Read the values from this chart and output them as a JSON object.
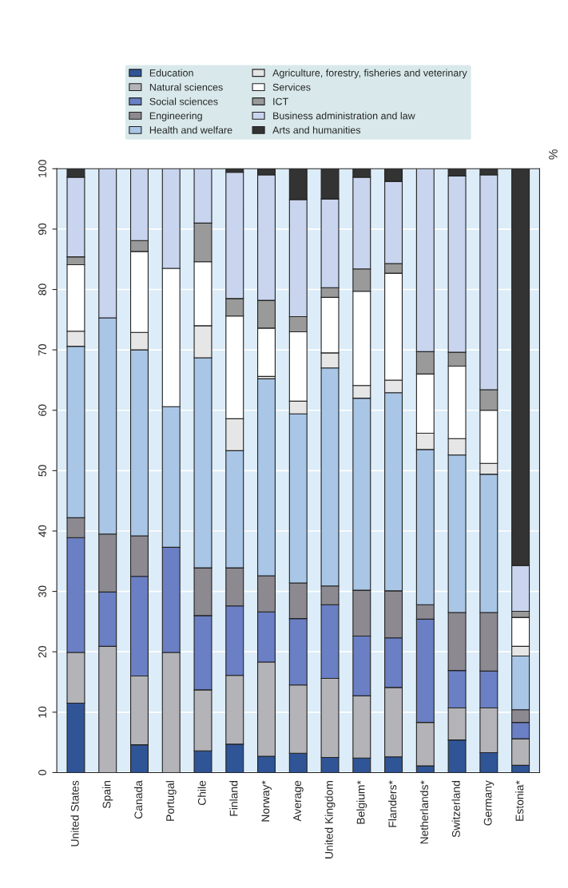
{
  "chart_data": {
    "type": "bar",
    "stacked": true,
    "ylabel": "%",
    "categories": [
      "United States",
      "Spain",
      "Canada",
      "Portugal",
      "Chile",
      "Finland",
      "Norway*",
      "Average",
      "United Kingdom",
      "Belgium*",
      "Flanders*",
      "Netherlands*",
      "Switzerland",
      "Germany",
      "Estonia*"
    ],
    "series": [
      {
        "name": "Education",
        "color": "#2f5597",
        "values": [
          11.5,
          0,
          4.6,
          0,
          3.6,
          4.7,
          2.7,
          3.2,
          2.5,
          2.4,
          2.6,
          1.1,
          5.4,
          3.3,
          1.2
        ]
      },
      {
        "name": "Natural sciences",
        "color": "#b4b4b8",
        "values": [
          8.4,
          20.9,
          11.4,
          19.9,
          10.1,
          11.4,
          15.6,
          11.3,
          13.1,
          10.3,
          11.5,
          7.2,
          5.3,
          7.4,
          4.4
        ]
      },
      {
        "name": "Social sciences",
        "color": "#6a7fc4",
        "values": [
          19.0,
          9.0,
          16.5,
          17.4,
          12.3,
          11.5,
          8.3,
          11.0,
          12.2,
          9.9,
          8.2,
          17.1,
          6.2,
          6.1,
          2.7
        ]
      },
      {
        "name": "Engineering",
        "color": "#8c8a90",
        "values": [
          3.3,
          9.6,
          6.7,
          0,
          7.9,
          6.3,
          6.0,
          5.9,
          3.1,
          7.6,
          7.8,
          2.4,
          9.6,
          9.7,
          2.1
        ]
      },
      {
        "name": "Health and welfare",
        "color": "#a9c6e6",
        "values": [
          28.4,
          35.8,
          30.8,
          23.3,
          34.8,
          19.4,
          32.6,
          28.0,
          36.1,
          31.8,
          32.8,
          25.7,
          26.1,
          22.9,
          8.9
        ]
      },
      {
        "name": "Agriculture, forestry, fisheries and veterinary",
        "color": "#e6e6e6",
        "values": [
          2.5,
          0,
          2.9,
          0,
          5.3,
          5.3,
          0.4,
          2.1,
          2.5,
          2.1,
          2.1,
          2.7,
          2.7,
          1.8,
          1.6
        ]
      },
      {
        "name": "Services",
        "color": "#ffffff",
        "values": [
          11.0,
          0,
          13.4,
          22.9,
          10.6,
          17.0,
          8.0,
          11.5,
          9.2,
          15.6,
          17.7,
          9.8,
          12.0,
          8.8,
          4.8
        ]
      },
      {
        "name": "ICT",
        "color": "#9a9a9a",
        "values": [
          1.3,
          0,
          1.8,
          0,
          6.4,
          2.9,
          4.6,
          2.5,
          1.6,
          3.7,
          1.6,
          3.7,
          2.3,
          3.4,
          1.0
        ]
      },
      {
        "name": "Business administration and law",
        "color": "#c9d5ee",
        "values": [
          13.2,
          24.7,
          11.9,
          16.5,
          9.0,
          20.9,
          20.8,
          19.4,
          14.7,
          15.2,
          13.6,
          30.3,
          29.2,
          35.6,
          7.6
        ]
      },
      {
        "name": "Arts and humanities",
        "color": "#333333",
        "values": [
          1.4,
          0,
          0,
          0,
          0,
          0.6,
          1.0,
          5.1,
          5.0,
          1.4,
          2.1,
          0,
          1.2,
          1.0,
          65.7
        ]
      }
    ],
    "ylim": [
      0,
      100
    ],
    "yticks": [
      0,
      10,
      20,
      30,
      40,
      50,
      60,
      70,
      80,
      90,
      100
    ],
    "grid": "y",
    "legend": "top"
  }
}
